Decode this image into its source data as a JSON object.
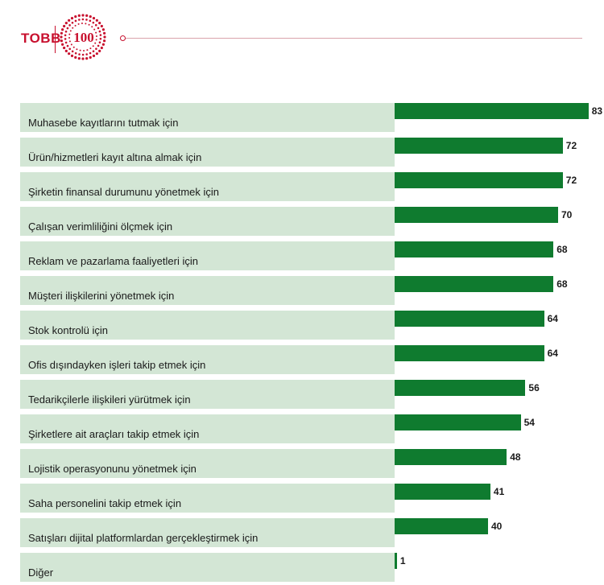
{
  "header": {
    "brand": "TOBB",
    "emblem_text": "100",
    "colors": {
      "brand": "#c8102e",
      "emblem": "#c8102e"
    }
  },
  "chart_data": {
    "type": "bar",
    "orientation": "horizontal",
    "categories": [
      "Muhasebe kayıtlarını tutmak için",
      "Ürün/hizmetleri kayıt altına almak için",
      "Şirketin finansal durumunu yönetmek için",
      "Çalışan verimliliğini ölçmek için",
      "Reklam ve pazarlama faaliyetleri için",
      "Müşteri ilişkilerini yönetmek için",
      "Stok kontrolü için",
      "Ofis dışındayken işleri takip etmek için",
      "Tedarikçilerle ilişkileri yürütmek için",
      "Şirketlere ait araçları takip etmek için",
      "Lojistik operasyonunu yönetmek için",
      "Saha personelini takip etmek için",
      "Satışları dijital platformlardan gerçekleştirmek için",
      "Diğer"
    ],
    "values": [
      83,
      72,
      72,
      70,
      68,
      68,
      64,
      64,
      56,
      54,
      48,
      41,
      40,
      1
    ],
    "xlim": [
      0,
      100
    ],
    "grid": false,
    "data_labels": true,
    "colors": {
      "bar": "#0f7b2f",
      "label_background": "#d3e6d5"
    }
  }
}
